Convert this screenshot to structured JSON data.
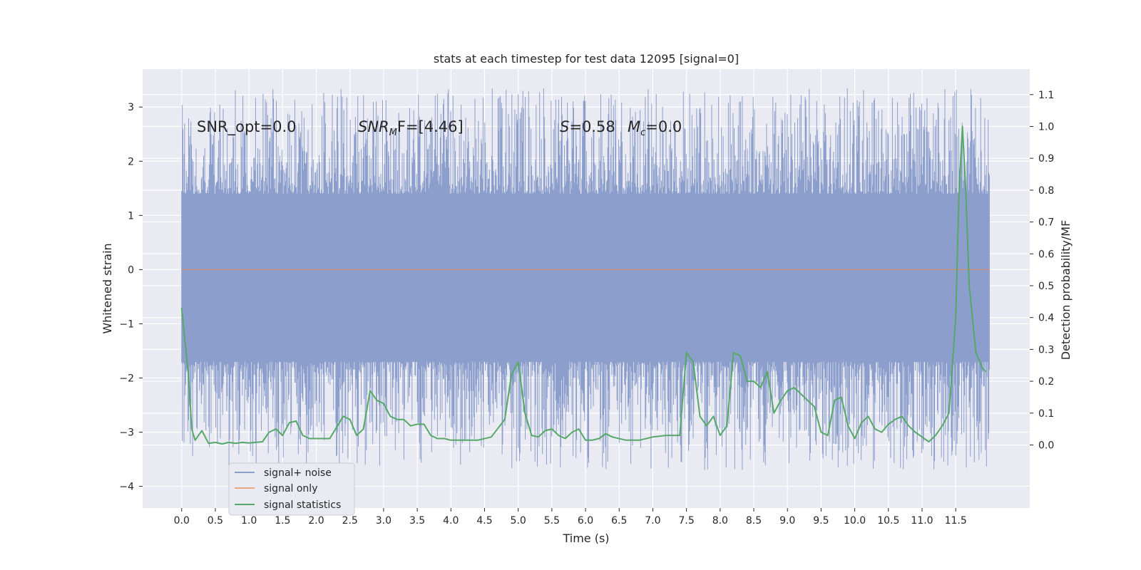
{
  "chart_data": {
    "type": "line",
    "title": "stats at each timestep for test data 12095 [signal=0]",
    "xlabel": "Time (s)",
    "ylabel_left": "Whitened strain",
    "ylabel_right": "Detection probability/MF",
    "xlim": [
      -0.58,
      12.6
    ],
    "ylim_left": [
      -4.4,
      3.7
    ],
    "ylim_right": [
      -0.198,
      1.18
    ],
    "x_ticks": [
      "0.0",
      "0.5",
      "1.0",
      "1.5",
      "2.0",
      "2.5",
      "3.0",
      "3.5",
      "4.0",
      "4.5",
      "5.0",
      "5.5",
      "6.0",
      "6.5",
      "7.0",
      "7.5",
      "8.0",
      "8.5",
      "9.0",
      "9.5",
      "10.0",
      "10.5",
      "11.0",
      "11.5"
    ],
    "y_ticks_left": [
      "−4",
      "−3",
      "−2",
      "−1",
      "0",
      "1",
      "2",
      "3"
    ],
    "y_ticks_right": [
      "0.0",
      "0.1",
      "0.2",
      "0.3",
      "0.4",
      "0.5",
      "0.6",
      "0.7",
      "0.8",
      "0.9",
      "1.0",
      "1.1"
    ],
    "grid": true,
    "legend_position": "lower-left",
    "annotations": {
      "snr_opt": "SNR_opt=0.0",
      "snr_mf_main": "SNR",
      "snr_mf_sub": "M",
      "snr_mf_rest": "F=[4.46]",
      "s_sym": "S",
      "s_val": "=0.58",
      "mc_sym": "M",
      "mc_sub": "c",
      "mc_val": "=0.0"
    },
    "series": [
      {
        "name": "signal+ noise",
        "axis": "left",
        "color": "#8c9fcc",
        "x_range": [
          0.0,
          12.0
        ],
        "band_lower": -1.7,
        "band_upper": 1.4,
        "peak_range_upper": [
          1.9,
          3.35
        ],
        "peak_range_lower": [
          -2.0,
          -3.7
        ]
      },
      {
        "name": "signal only",
        "axis": "left",
        "color": "#dd8452",
        "x": [
          0.0,
          12.0
        ],
        "y": [
          0.0,
          0.0
        ]
      },
      {
        "name": "signal statistics",
        "axis": "right",
        "color": "#55a868",
        "x": [
          0.0,
          0.1,
          0.15,
          0.2,
          0.3,
          0.4,
          0.5,
          0.6,
          0.7,
          0.8,
          0.9,
          1.0,
          1.1,
          1.2,
          1.3,
          1.4,
          1.5,
          1.6,
          1.7,
          1.8,
          1.9,
          2.0,
          2.2,
          2.4,
          2.5,
          2.6,
          2.7,
          2.8,
          2.9,
          3.0,
          3.1,
          3.2,
          3.3,
          3.4,
          3.5,
          3.6,
          3.7,
          3.8,
          3.9,
          4.0,
          4.2,
          4.4,
          4.6,
          4.8,
          4.9,
          5.0,
          5.1,
          5.2,
          5.3,
          5.4,
          5.5,
          5.6,
          5.7,
          5.8,
          5.9,
          6.0,
          6.1,
          6.2,
          6.3,
          6.4,
          6.6,
          6.8,
          7.0,
          7.2,
          7.4,
          7.5,
          7.6,
          7.7,
          7.8,
          7.9,
          8.0,
          8.1,
          8.2,
          8.3,
          8.4,
          8.5,
          8.6,
          8.7,
          8.8,
          8.9,
          9.0,
          9.1,
          9.2,
          9.3,
          9.4,
          9.5,
          9.6,
          9.7,
          9.8,
          9.9,
          10.0,
          10.1,
          10.2,
          10.3,
          10.4,
          10.5,
          10.6,
          10.7,
          10.8,
          10.9,
          11.0,
          11.1,
          11.2,
          11.3,
          11.4,
          11.5,
          11.55,
          11.6,
          11.65,
          11.7,
          11.8,
          11.9,
          11.95
        ],
        "y": [
          0.43,
          0.22,
          0.05,
          0.015,
          0.045,
          0.005,
          0.008,
          0.003,
          0.008,
          0.005,
          0.008,
          0.006,
          0.008,
          0.01,
          0.04,
          0.05,
          0.03,
          0.07,
          0.075,
          0.03,
          0.02,
          0.02,
          0.02,
          0.09,
          0.08,
          0.03,
          0.05,
          0.17,
          0.14,
          0.13,
          0.09,
          0.08,
          0.08,
          0.06,
          0.065,
          0.065,
          0.03,
          0.02,
          0.02,
          0.015,
          0.015,
          0.015,
          0.025,
          0.08,
          0.22,
          0.26,
          0.1,
          0.03,
          0.025,
          0.045,
          0.05,
          0.03,
          0.02,
          0.04,
          0.05,
          0.015,
          0.015,
          0.02,
          0.035,
          0.025,
          0.015,
          0.015,
          0.025,
          0.03,
          0.03,
          0.29,
          0.26,
          0.09,
          0.06,
          0.09,
          0.03,
          0.06,
          0.29,
          0.28,
          0.2,
          0.2,
          0.18,
          0.23,
          0.1,
          0.14,
          0.17,
          0.18,
          0.16,
          0.14,
          0.12,
          0.04,
          0.03,
          0.14,
          0.15,
          0.06,
          0.02,
          0.07,
          0.09,
          0.05,
          0.04,
          0.065,
          0.08,
          0.09,
          0.06,
          0.04,
          0.025,
          0.01,
          0.03,
          0.06,
          0.1,
          0.4,
          0.8,
          1.0,
          0.8,
          0.5,
          0.29,
          0.24,
          0.23
        ]
      }
    ]
  }
}
